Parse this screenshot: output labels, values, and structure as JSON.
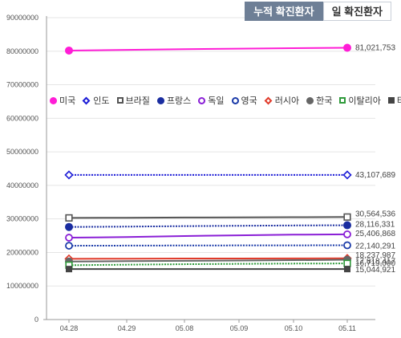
{
  "tabs": [
    {
      "label": "누적 확진환자",
      "active": true
    },
    {
      "label": "일 확진환자",
      "active": false
    }
  ],
  "colors": {
    "tab_active_bg": "#6e7f96",
    "grid": "#e5e5e5",
    "axis": "#999999"
  },
  "chart_data": {
    "type": "line",
    "x": [
      "04.28",
      "04.29",
      "05.08",
      "05.09",
      "05.10",
      "05.11"
    ],
    "ylim": [
      0,
      90000000
    ],
    "yticks": [
      0,
      10000000,
      20000000,
      30000000,
      40000000,
      50000000,
      60000000,
      70000000,
      80000000,
      90000000
    ],
    "grid": true,
    "legend_position": "middle-left",
    "series": [
      {
        "name": "미국",
        "marker": "circle-filled",
        "color": "#ff1dd6",
        "line_style": "solid",
        "values": [
          80200000,
          80400000,
          80600000,
          80750000,
          80900000,
          81021753
        ],
        "end_label": "81,021,753",
        "label_dy": 3
      },
      {
        "name": "인도",
        "marker": "diamond-open",
        "color": "#1a1ad6",
        "line_style": "dotted",
        "values": [
          43107689,
          43107689,
          43107689,
          43107689,
          43107689,
          43107689
        ],
        "end_label": "43,107,689",
        "label_dy": 3
      },
      {
        "name": "브라질",
        "marker": "square-open",
        "color": "#555555",
        "line_style": "solid",
        "values": [
          30300000,
          30350000,
          30420000,
          30470000,
          30520000,
          30564536
        ],
        "end_label": "30,564,536",
        "label_dy": -1
      },
      {
        "name": "프랑스",
        "marker": "circle-filled",
        "color": "#1a2da0",
        "line_style": "dotted",
        "values": [
          27600000,
          27700000,
          27850000,
          27950000,
          28050000,
          28116331
        ],
        "end_label": "28,116,331",
        "label_dy": 2
      },
      {
        "name": "독일",
        "marker": "circle-open",
        "color": "#8a1fd6",
        "line_style": "solid",
        "values": [
          24400000,
          24600000,
          24900000,
          25100000,
          25300000,
          25406868
        ],
        "end_label": "25,406,868",
        "label_dy": 2
      },
      {
        "name": "영국",
        "marker": "circle-open",
        "color": "#1a3aa8",
        "line_style": "dotted",
        "values": [
          22000000,
          22040000,
          22080000,
          22100000,
          22120000,
          22140291
        ],
        "end_label": "22,140,291",
        "label_dy": 4
      },
      {
        "name": "러시아",
        "marker": "diamond-open",
        "color": "#e03a2a",
        "line_style": "solid",
        "values": [
          18100000,
          18140000,
          18180000,
          18200000,
          18220000,
          18237987
        ],
        "end_label": "18,237,987",
        "label_dy": -1
      },
      {
        "name": "한국",
        "marker": "circle-filled",
        "color": "#666666",
        "line_style": "solid",
        "values": [
          17300000,
          17400000,
          17500000,
          17600000,
          17700000,
          17818417
        ],
        "end_label": "17,818,417",
        "label_dy": 5
      },
      {
        "name": "이탈리아",
        "marker": "square-open",
        "color": "#2e9a3a",
        "line_style": "dotted",
        "values": [
          16200000,
          16350000,
          16500000,
          16600000,
          16680000,
          16719000
        ],
        "end_label": "16,719,000",
        "label_dy": 3
      },
      {
        "name": "터키",
        "marker": "square-filled",
        "color": "#444444",
        "line_style": "solid",
        "values": [
          15044921,
          15044921,
          15044921,
          15044921,
          15044921,
          15044921
        ],
        "end_label": "15,044,921",
        "label_dy": 4
      }
    ]
  }
}
